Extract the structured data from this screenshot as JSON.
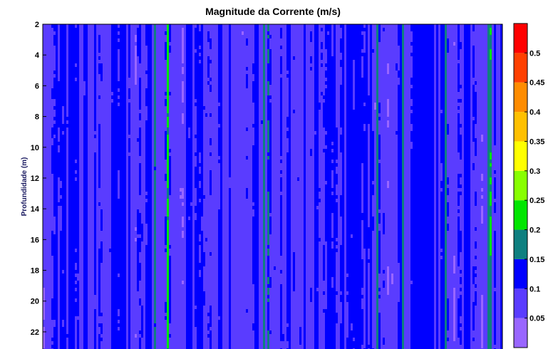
{
  "chart_data": {
    "type": "heatmap",
    "title": "Magnitude da Corrente (m/s)",
    "xlabel": "",
    "ylabel": "Profundidade (m)",
    "y_axis": {
      "reversed": true,
      "ticks": [
        2,
        4,
        6,
        8,
        10,
        12,
        14,
        16,
        18,
        20,
        22
      ]
    },
    "y_tick_labels": [
      "2",
      "4",
      "6",
      "8",
      "10",
      "12",
      "14",
      "16",
      "18",
      "20",
      "22"
    ],
    "colorbar": {
      "range": [
        0,
        0.55
      ],
      "levels": [
        0,
        0.05,
        0.1,
        0.15,
        0.2,
        0.25,
        0.3,
        0.35,
        0.4,
        0.45,
        0.5,
        0.55
      ],
      "tick_labels": [
        "0.05",
        "0.1",
        "0.15",
        "0.2",
        "0.25",
        "0.3",
        "0.35",
        "0.4",
        "0.45",
        "0.5"
      ],
      "colors": [
        "#9966ff",
        "#5a3cff",
        "#0000ff",
        "#0f8080",
        "#00e600",
        "#88ff00",
        "#ffff00",
        "#ffc000",
        "#ff8c00",
        "#ff4000",
        "#ff0000"
      ]
    }
  }
}
